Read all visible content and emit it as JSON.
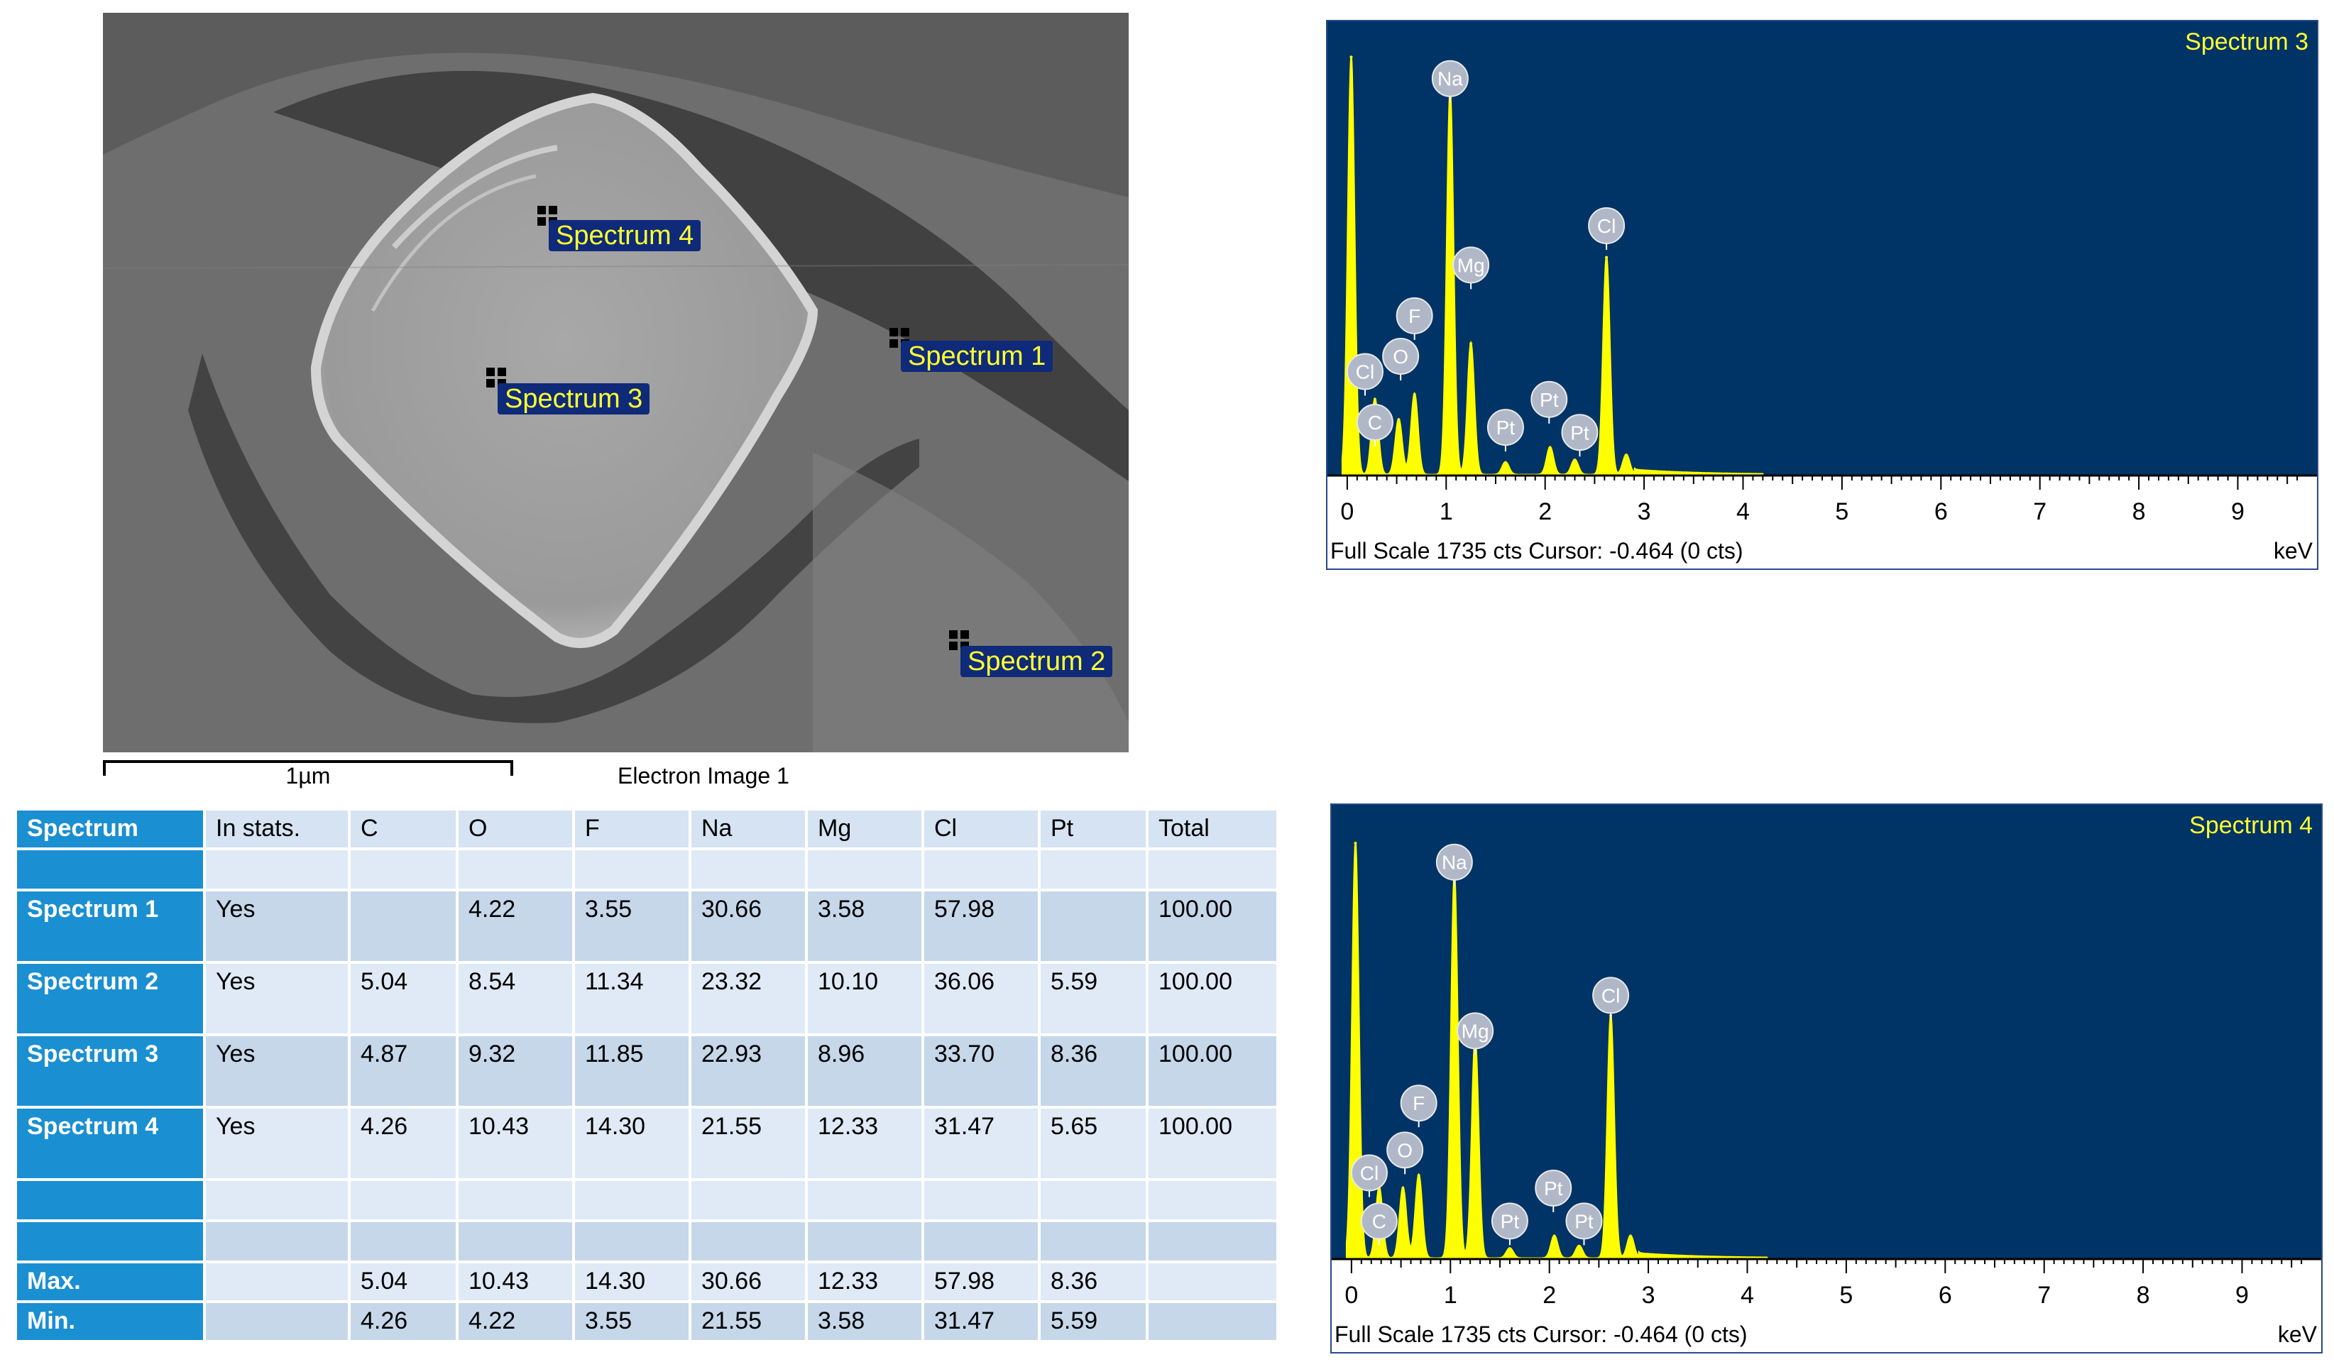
{
  "electron_image": {
    "caption": "Electron Image 1",
    "scale_label": "1µm",
    "spectrum_labels": [
      "Spectrum 4",
      "Spectrum 1",
      "Spectrum 3",
      "Spectrum 2"
    ]
  },
  "table": {
    "headers": [
      "Spectrum",
      "In stats.",
      "C",
      "O",
      "F",
      "Na",
      "Mg",
      "Cl",
      "Pt",
      "Total"
    ],
    "rows": [
      [
        "Spectrum 1",
        "Yes",
        "",
        "4.22",
        "3.55",
        "30.66",
        "3.58",
        "57.98",
        "",
        "100.00"
      ],
      [
        "Spectrum 2",
        "Yes",
        "5.04",
        "8.54",
        "11.34",
        "23.32",
        "10.10",
        "36.06",
        "5.59",
        "100.00"
      ],
      [
        "Spectrum 3",
        "Yes",
        "4.87",
        "9.32",
        "11.85",
        "22.93",
        "8.96",
        "33.70",
        "8.36",
        "100.00"
      ],
      [
        "Spectrum 4",
        "Yes",
        "4.26",
        "10.43",
        "14.30",
        "21.55",
        "12.33",
        "31.47",
        "5.65",
        "100.00"
      ]
    ],
    "max": [
      "Max.",
      "",
      "5.04",
      "10.43",
      "14.30",
      "30.66",
      "12.33",
      "57.98",
      "8.36",
      ""
    ],
    "min": [
      "Min.",
      "",
      "4.26",
      "4.22",
      "3.55",
      "21.55",
      "3.58",
      "31.47",
      "5.59",
      ""
    ]
  },
  "chart_data": [
    {
      "type": "area",
      "title": "Spectrum 3",
      "xlabel": "keV",
      "xlim": [
        -0.2,
        9.8
      ],
      "ylim": [
        0,
        1735
      ],
      "x_ticks": [
        "0",
        "1",
        "2",
        "3",
        "4",
        "5",
        "6",
        "7",
        "8",
        "9"
      ],
      "footer": "Full Scale 1735 cts Cursor: -0.464  (0 cts)",
      "peaks": [
        {
          "kev": 0.04,
          "counts": 1650
        },
        {
          "kev": 0.28,
          "counts": 300
        },
        {
          "kev": 0.52,
          "counts": 220
        },
        {
          "kev": 0.68,
          "counts": 320
        },
        {
          "kev": 1.04,
          "counts": 1520
        },
        {
          "kev": 1.25,
          "counts": 520
        },
        {
          "kev": 1.6,
          "counts": 50
        },
        {
          "kev": 2.05,
          "counts": 110
        },
        {
          "kev": 2.3,
          "counts": 60
        },
        {
          "kev": 2.62,
          "counts": 860
        },
        {
          "kev": 2.82,
          "counts": 80
        }
      ],
      "element_labels": [
        {
          "text": "Na",
          "kev": 1.04,
          "counts": 1565
        },
        {
          "text": "Cl",
          "kev": 2.62,
          "counts": 985
        },
        {
          "text": "Mg",
          "kev": 1.25,
          "counts": 830
        },
        {
          "text": "F",
          "kev": 0.68,
          "counts": 630
        },
        {
          "text": "O",
          "kev": 0.54,
          "counts": 470
        },
        {
          "text": "Cl",
          "kev": 0.18,
          "counts": 410
        },
        {
          "text": "C",
          "kev": 0.28,
          "counts": 210
        },
        {
          "text": "Pt",
          "kev": 2.04,
          "counts": 300
        },
        {
          "text": "Pt",
          "kev": 1.6,
          "counts": 190
        },
        {
          "text": "Pt",
          "kev": 2.35,
          "counts": 170
        }
      ]
    },
    {
      "type": "area",
      "title": "Spectrum 4",
      "xlabel": "keV",
      "xlim": [
        -0.2,
        9.8
      ],
      "ylim": [
        0,
        1735
      ],
      "x_ticks": [
        "0",
        "1",
        "2",
        "3",
        "4",
        "5",
        "6",
        "7",
        "8",
        "9"
      ],
      "footer": "Full Scale 1735 cts Cursor: -0.464  (0 cts)",
      "peaks": [
        {
          "kev": 0.04,
          "counts": 1640
        },
        {
          "kev": 0.28,
          "counts": 280
        },
        {
          "kev": 0.52,
          "counts": 280
        },
        {
          "kev": 0.68,
          "counts": 330
        },
        {
          "kev": 1.04,
          "counts": 1520
        },
        {
          "kev": 1.25,
          "counts": 870
        },
        {
          "kev": 1.6,
          "counts": 40
        },
        {
          "kev": 2.05,
          "counts": 90
        },
        {
          "kev": 2.3,
          "counts": 50
        },
        {
          "kev": 2.62,
          "counts": 960
        },
        {
          "kev": 2.82,
          "counts": 90
        }
      ],
      "element_labels": [
        {
          "text": "Na",
          "kev": 1.04,
          "counts": 1565
        },
        {
          "text": "Cl",
          "kev": 2.62,
          "counts": 1040
        },
        {
          "text": "Mg",
          "kev": 1.25,
          "counts": 900
        },
        {
          "text": "F",
          "kev": 0.68,
          "counts": 615
        },
        {
          "text": "O",
          "kev": 0.54,
          "counts": 430
        },
        {
          "text": "Cl",
          "kev": 0.18,
          "counts": 340
        },
        {
          "text": "C",
          "kev": 0.28,
          "counts": 150
        },
        {
          "text": "Pt",
          "kev": 2.04,
          "counts": 280
        },
        {
          "text": "Pt",
          "kev": 1.6,
          "counts": 150
        },
        {
          "text": "Pt",
          "kev": 2.35,
          "counts": 150
        }
      ]
    }
  ]
}
